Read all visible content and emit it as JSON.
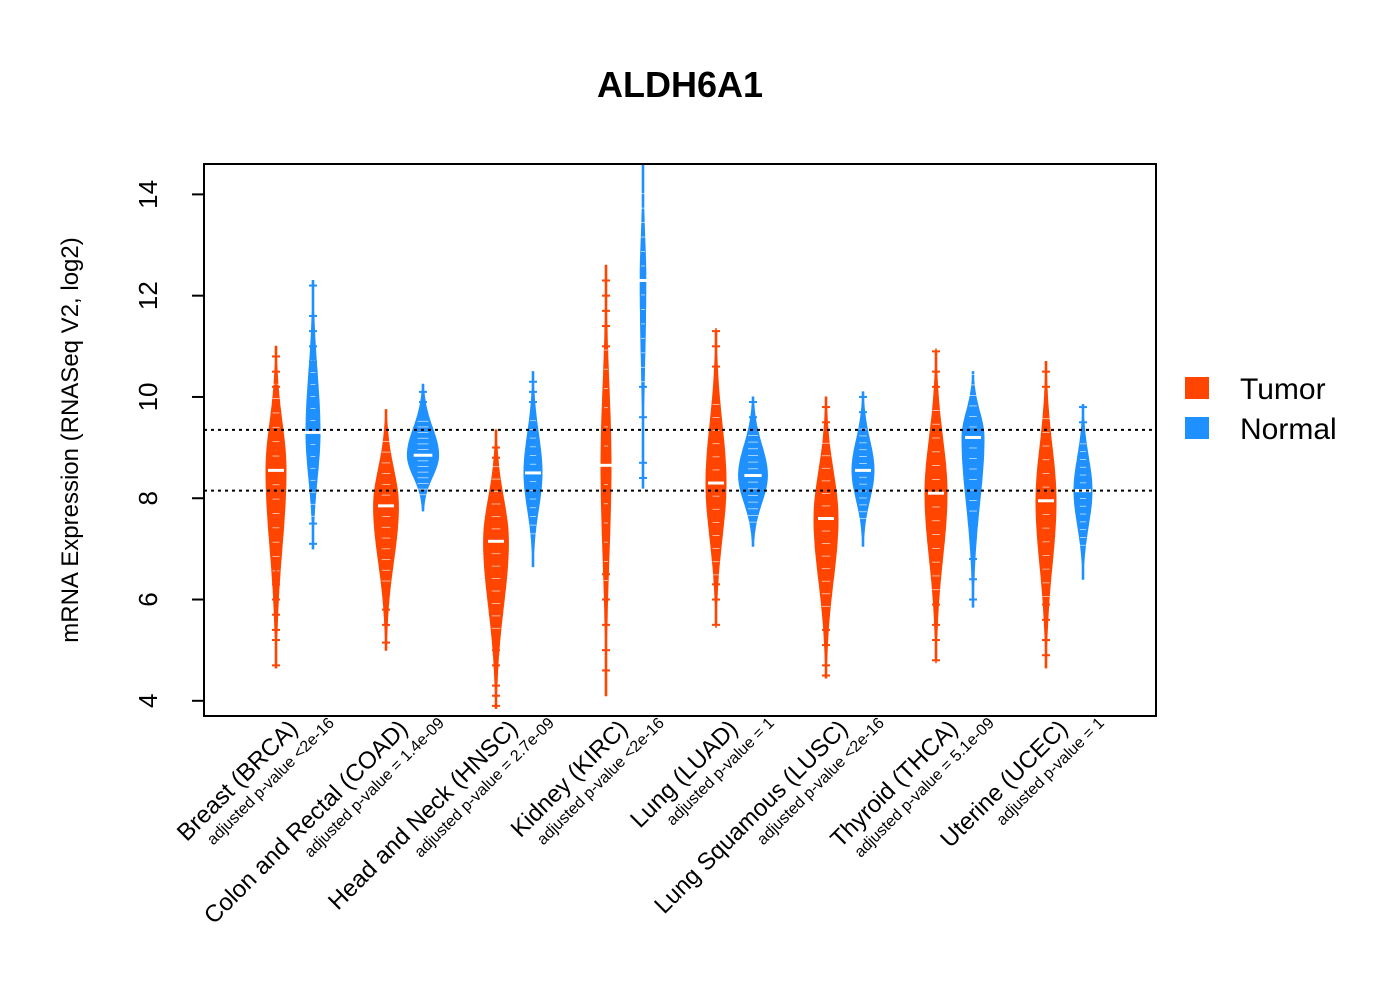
{
  "chart_data": {
    "type": "violin",
    "title": "ALDH6A1",
    "xlabel": "",
    "ylabel": "mRNA Expression (RNASeq V2, log2)",
    "ylim": [
      3.7,
      14.6
    ],
    "yticks": [
      4,
      6,
      8,
      10,
      12,
      14
    ],
    "reference_lines": [
      9.35,
      8.15
    ],
    "legend": {
      "placement": "right",
      "entries": [
        {
          "name": "Tumor",
          "color": "#ff4500"
        },
        {
          "name": "Normal",
          "color": "#1e90ff"
        }
      ]
    },
    "categories": [
      {
        "label": "Breast (BRCA)",
        "pvalue": "adjusted p-value <2e-16",
        "tumor": {
          "median": 8.55,
          "min": 4.65,
          "max": 11.0,
          "width": 0.5,
          "outliers": [
            4.7,
            5.2,
            5.4,
            5.7,
            6.0,
            6.3,
            6.6,
            10.2,
            10.5,
            10.8
          ]
        },
        "normal": {
          "median": 9.3,
          "min": 7.0,
          "max": 12.3,
          "width": 0.35,
          "outliers": [
            7.1,
            7.5,
            10.7,
            11.0,
            11.3,
            11.6,
            12.2
          ]
        }
      },
      {
        "label": "Colon and Rectal (COAD)",
        "pvalue": "adjusted p-value = 1.4e-09",
        "tumor": {
          "median": 7.85,
          "min": 5.0,
          "max": 9.75,
          "width": 0.62,
          "outliers": [
            5.15,
            5.5,
            5.8,
            6.2
          ]
        },
        "normal": {
          "median": 8.85,
          "min": 7.75,
          "max": 10.25,
          "width": 0.78,
          "outliers": [
            9.9,
            10.1
          ]
        }
      },
      {
        "label": "Head and Neck (HNSC)",
        "pvalue": "adjusted p-value = 2.7e-09",
        "tumor": {
          "median": 7.15,
          "min": 3.85,
          "max": 9.35,
          "width": 0.62,
          "outliers": [
            3.9,
            4.1,
            4.3,
            4.7,
            5.0,
            5.3,
            5.6,
            8.8,
            9.0
          ]
        },
        "normal": {
          "median": 8.5,
          "min": 6.65,
          "max": 10.5,
          "width": 0.45,
          "outliers": [
            9.9,
            10.1,
            10.3
          ]
        }
      },
      {
        "label": "Kidney (KIRC)",
        "pvalue": "adjusted p-value <2e-16",
        "tumor": {
          "median": 8.65,
          "min": 4.1,
          "max": 12.6,
          "width": 0.25,
          "outliers": [
            4.6,
            5.0,
            5.5,
            6.0,
            6.5,
            11.0,
            11.4,
            11.7,
            12.0,
            12.3
          ]
        },
        "normal": {
          "median": 12.3,
          "min": 8.2,
          "max": 14.6,
          "width": 0.14,
          "outliers": [
            8.4,
            8.7,
            9.6,
            10.2
          ]
        }
      },
      {
        "label": "Lung (LUAD)",
        "pvalue": "adjusted p-value = 1",
        "tumor": {
          "median": 8.3,
          "min": 5.5,
          "max": 11.3,
          "width": 0.5,
          "outliers": [
            5.5,
            6.0,
            6.3,
            10.6,
            11.0,
            11.3
          ]
        },
        "normal": {
          "median": 8.45,
          "min": 7.05,
          "max": 10.0,
          "width": 0.72,
          "outliers": [
            9.6,
            9.9
          ]
        }
      },
      {
        "label": "Lung Squamous (LUSC)",
        "pvalue": "adjusted p-value <2e-16",
        "tumor": {
          "median": 7.6,
          "min": 4.45,
          "max": 10.0,
          "width": 0.6,
          "outliers": [
            4.5,
            4.7,
            5.1,
            5.4,
            5.7,
            6.0,
            9.5,
            9.8
          ]
        },
        "normal": {
          "median": 8.55,
          "min": 7.05,
          "max": 10.1,
          "width": 0.55,
          "outliers": [
            9.7,
            10.0
          ]
        }
      },
      {
        "label": "Thyroid (THCA)",
        "pvalue": "adjusted p-value = 5.1e-09",
        "tumor": {
          "median": 8.1,
          "min": 4.8,
          "max": 10.9,
          "width": 0.55,
          "outliers": [
            4.8,
            5.2,
            5.5,
            5.9,
            6.3,
            10.2,
            10.5,
            10.9
          ]
        },
        "normal": {
          "median": 9.2,
          "min": 5.85,
          "max": 10.5,
          "width": 0.55,
          "outliers": [
            6.0,
            6.4,
            6.8,
            7.6
          ]
        }
      },
      {
        "label": "Uterine (UCEC)",
        "pvalue": "adjusted p-value = 1",
        "tumor": {
          "median": 7.95,
          "min": 4.65,
          "max": 10.7,
          "width": 0.5,
          "outliers": [
            4.9,
            5.2,
            5.6,
            5.9,
            10.2,
            10.5
          ]
        },
        "normal": {
          "median": 8.15,
          "min": 6.4,
          "max": 9.85,
          "width": 0.45,
          "outliers": [
            9.5,
            9.8
          ]
        }
      }
    ]
  }
}
